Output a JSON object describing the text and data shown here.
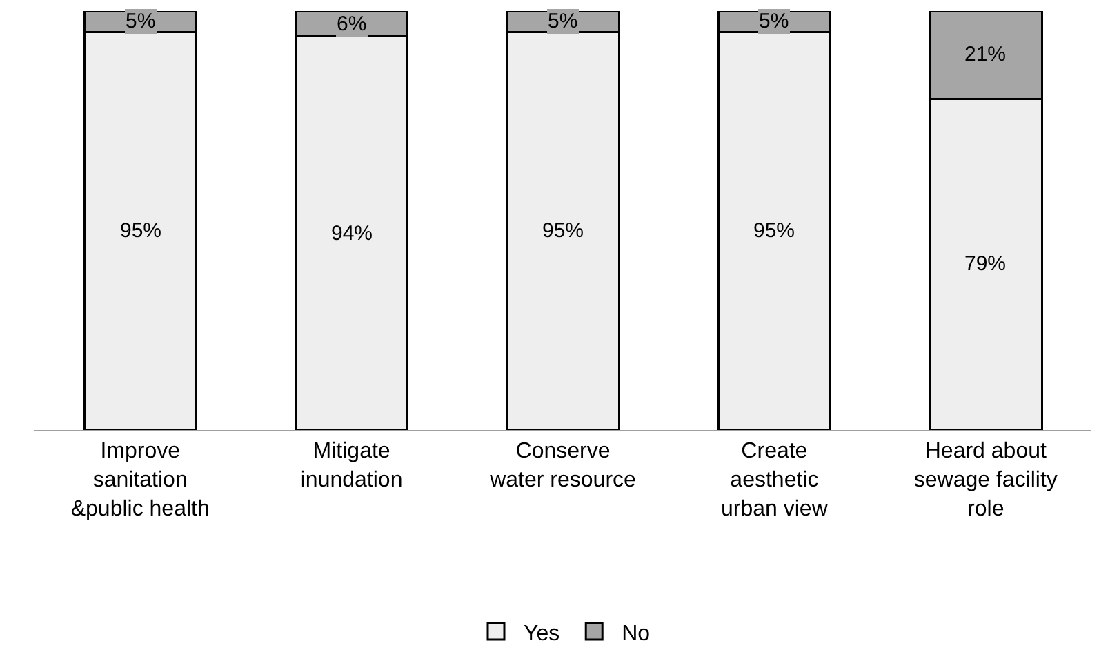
{
  "chart_data": {
    "type": "bar",
    "stacked": true,
    "categories": [
      "Improve\nsanitation\n&public health",
      "Mitigate\ninundation",
      "Conserve\nwater resource",
      "Create\naesthetic\nurban view",
      "Heard about\nsewage facility\nrole"
    ],
    "series": [
      {
        "name": "Yes",
        "color": "#eeeeee",
        "values": [
          95,
          94,
          95,
          95,
          79
        ],
        "value_labels": [
          "95%",
          "94%",
          "95%",
          "95%",
          "79%"
        ]
      },
      {
        "name": "No",
        "color": "#a6a6a6",
        "values": [
          5,
          6,
          5,
          5,
          21
        ],
        "value_labels": [
          "5%",
          "6%",
          "5%",
          "5%",
          "21%"
        ]
      }
    ],
    "legend": "bottom",
    "grid": false
  }
}
